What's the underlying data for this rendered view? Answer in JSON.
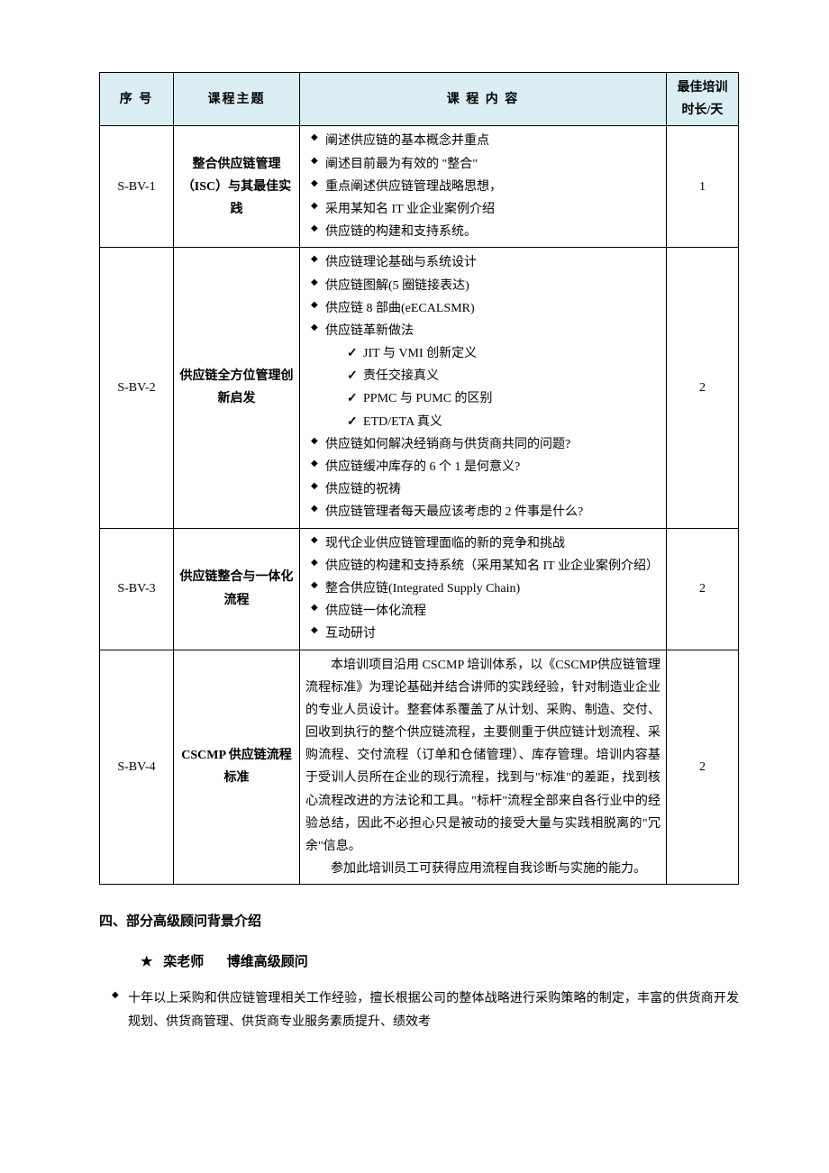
{
  "table": {
    "headers": [
      "序 号",
      "课程主题",
      "课 程 内 容",
      "最佳培训时长/天"
    ],
    "rows": [
      {
        "code": "S-BV-1",
        "topic": "整合供应链管理（ISC）与其最佳实践",
        "duration": "1",
        "items": [
          "阐述供应链的基本概念并重点",
          "阐述目前最为有效的 \"整合\"",
          "重点阐述供应链管理战略思想，",
          "采用某知名 IT 业企业案例介绍",
          "供应链的构建和支持系统。"
        ]
      },
      {
        "code": "S-BV-2",
        "topic": "供应链全方位管理创新启发",
        "duration": "2",
        "items": [
          "供应链理论基础与系统设计",
          "供应链图解(5 圈链接表达)",
          "供应链 8 部曲(eECALSMR)",
          {
            "text": "供应链革新做法",
            "sub": [
              "JIT 与 VMI 创新定义",
              "责任交接真义",
              "PPMC 与 PUMC 的区别",
              "ETD/ETA 真义"
            ]
          },
          "供应链如何解决经销商与供货商共同的问题?",
          "供应链缓冲库存的 6 个 1 是何意义?",
          "供应链的祝祷",
          "供应链管理者每天最应该考虑的 2 件事是什么?"
        ]
      },
      {
        "code": "S-BV-3",
        "topic": "供应链整合与一体化流程",
        "duration": "2",
        "items": [
          "现代企业供应链管理面临的新的竞争和挑战",
          "供应链的构建和支持系统（采用某知名 IT 业企业案例介绍）",
          "整合供应链(Integrated Supply Chain)",
          "供应链一体化流程",
          "互动研讨"
        ]
      },
      {
        "code": "S-BV-4",
        "topic": "CSCMP 供应链流程标准",
        "duration": "2",
        "paragraphs": [
          "本培训项目沿用 CSCMP 培训体系，以《CSCMP供应链管理流程标准》为理论基础并结合讲师的实践经验，针对制造业企业的专业人员设计。整套体系覆盖了从计划、采购、制造、交付、回收到执行的整个供应链流程，主要侧重于供应链计划流程、采购流程、交付流程（订单和仓储管理）、库存管理。培训内容基于受训人员所在企业的现行流程，找到与\"标准\"的差距，找到核心流程改进的方法论和工具。\"标杆\"流程全部来自各行业中的经验总结，因此不必担心只是被动的接受大量与实践相脱离的\"冗余\"信息。",
          "参加此培训员工可获得应用流程自我诊断与实施的能力。"
        ]
      }
    ]
  },
  "section_title": "四、部分高级顾问背景介绍",
  "consultant": {
    "star": "★",
    "name": "栾老师",
    "title": "博维高级顾问",
    "bio": [
      "十年以上采购和供应链管理相关工作经验，擅长根据公司的整体战略进行采购策略的制定，丰富的供货商开发规划、供货商管理、供货商专业服务素质提升、绩效考"
    ]
  },
  "style": {
    "header_bg": "#dbeef3",
    "border_color": "#000000",
    "text_color": "#000000",
    "body_bg": "#ffffff",
    "font_size_body": 14,
    "font_size_heading": 15
  }
}
